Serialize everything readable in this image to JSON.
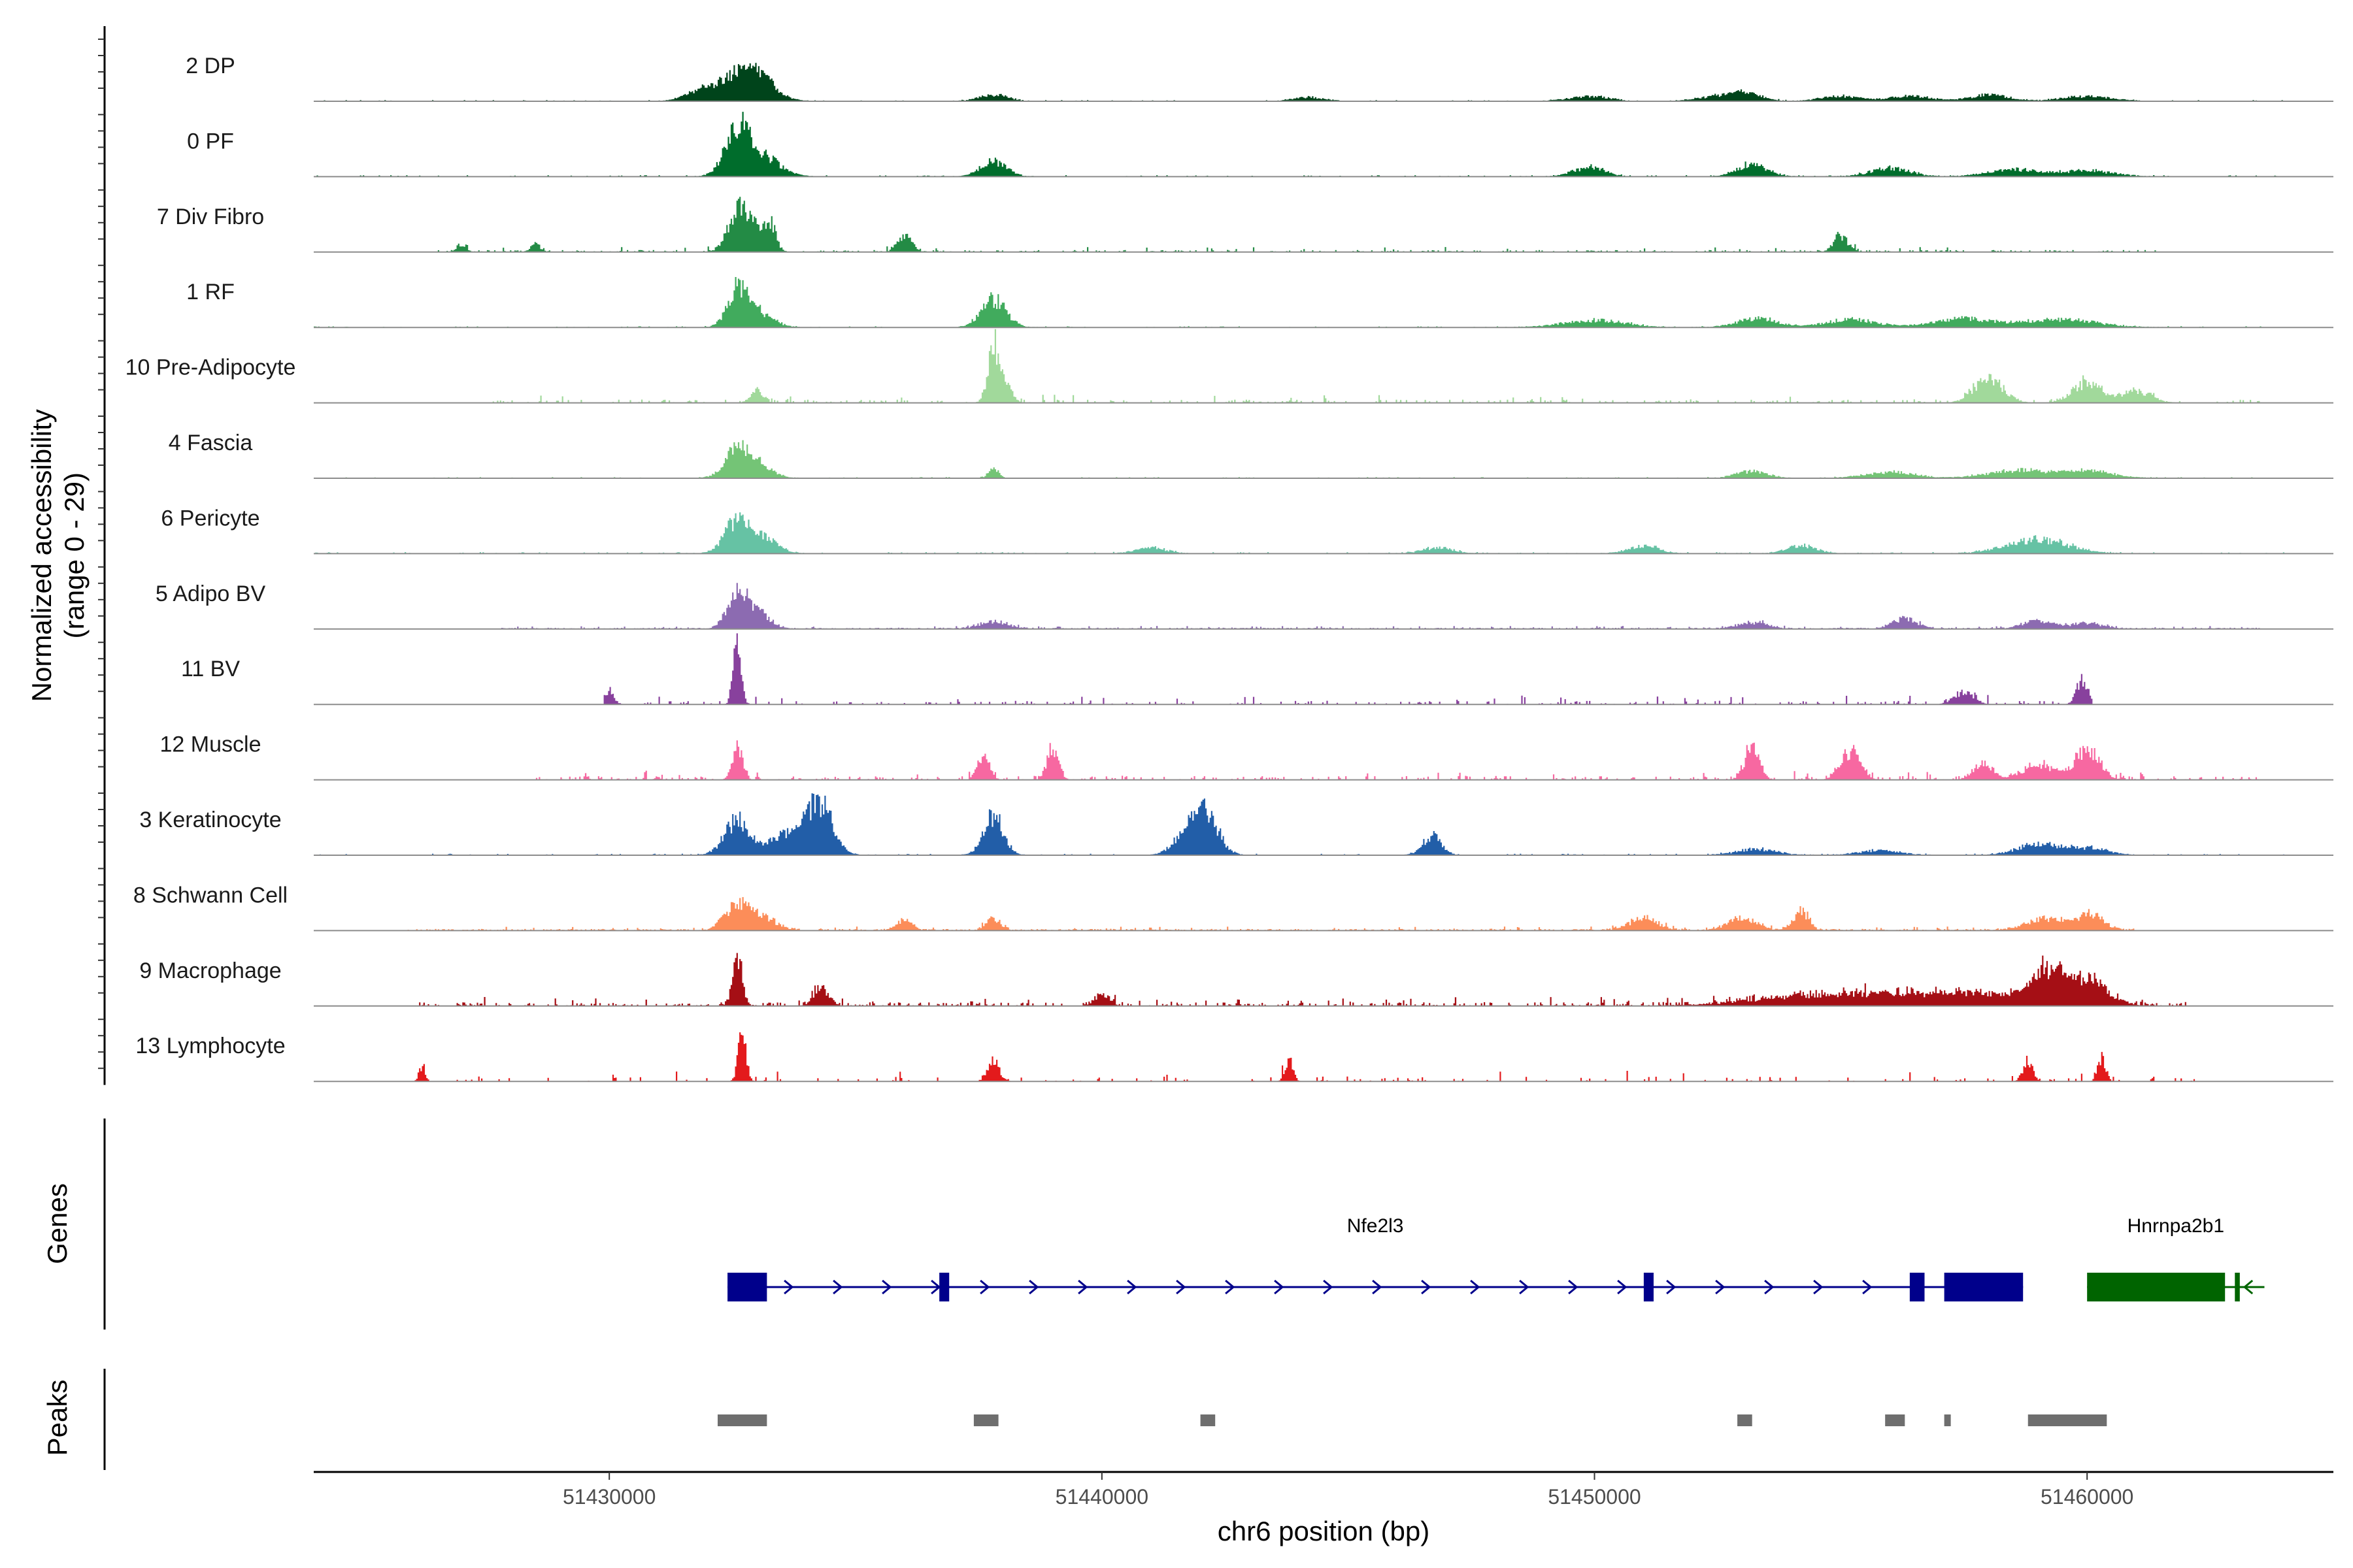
{
  "chart_data": {
    "type": "area",
    "title": "",
    "chromosome": "chr6",
    "xlabel": "chr6 position (bp)",
    "ylabel": "Normalized accessibility",
    "ylabel_range": "(range 0 - 29)",
    "ylim": [
      0,
      29
    ],
    "xlim": [
      51424000,
      51465000
    ],
    "x_ticks": [
      51430000,
      51440000,
      51450000,
      51460000
    ],
    "x_tick_labels": [
      "51430000",
      "51440000",
      "51450000",
      "51460000"
    ],
    "tracks": [
      {
        "name": "2 DP",
        "color": "#00441b",
        "range": [
          51424000,
          51464000
        ],
        "noise": 0.12,
        "density": 1.0,
        "peaks": [
          [
            51432600,
            6,
            500
          ],
          [
            51433000,
            4,
            300
          ],
          [
            51431800,
            1.2,
            300
          ],
          [
            51437800,
            1.5,
            300
          ],
          [
            51444200,
            1.0,
            300
          ],
          [
            51449900,
            1.2,
            400
          ],
          [
            51452500,
            1.2,
            400
          ],
          [
            51453100,
            2.0,
            300
          ],
          [
            51455000,
            1.2,
            400
          ],
          [
            51456400,
            1.3,
            400
          ],
          [
            51458000,
            1.5,
            400
          ],
          [
            51460000,
            1.2,
            500
          ]
        ]
      },
      {
        "name": "0 PF",
        "color": "#006d2c",
        "range": [
          51424000,
          51464000
        ],
        "noise": 0.15,
        "density": 1.0,
        "peaks": [
          [
            51432600,
            12,
            250
          ],
          [
            51433100,
            5,
            350
          ],
          [
            51437800,
            4,
            250
          ],
          [
            51449900,
            2.5,
            300
          ],
          [
            51453200,
            3,
            300
          ],
          [
            51456000,
            2.0,
            400
          ],
          [
            51458500,
            1.8,
            500
          ],
          [
            51460000,
            1.5,
            500
          ]
        ]
      },
      {
        "name": "7 Div Fibro",
        "color": "#238b45",
        "range": [
          51426500,
          51461500
        ],
        "noise": 0.5,
        "density": 0.35,
        "peaks": [
          [
            51432600,
            10,
            200
          ],
          [
            51433000,
            6,
            200
          ],
          [
            51433300,
            5,
            100
          ],
          [
            51436000,
            4,
            150
          ],
          [
            51455000,
            4,
            150
          ],
          [
            51427000,
            2,
            100
          ],
          [
            51428500,
            2,
            100
          ]
        ]
      },
      {
        "name": "1 RF",
        "color": "#41ab5d",
        "range": [
          51424000,
          51464000
        ],
        "noise": 0.12,
        "density": 1.0,
        "peaks": [
          [
            51432600,
            9,
            200
          ],
          [
            51433000,
            4,
            300
          ],
          [
            51437800,
            7,
            250
          ],
          [
            51450000,
            1.8,
            600
          ],
          [
            51453300,
            2.2,
            400
          ],
          [
            51455200,
            2.0,
            500
          ],
          [
            51457500,
            2.2,
            600
          ],
          [
            51459500,
            2.0,
            700
          ]
        ]
      },
      {
        "name": "10 Pre-Adipocyte",
        "color": "#a1d99b",
        "range": [
          51427500,
          51463500
        ],
        "noise": 0.8,
        "density": 0.25,
        "peaks": [
          [
            51437800,
            12,
            120
          ],
          [
            51438000,
            5,
            150
          ],
          [
            51433000,
            3,
            120
          ],
          [
            51458000,
            6,
            300
          ],
          [
            51460000,
            5,
            300
          ],
          [
            51461000,
            3,
            300
          ]
        ]
      },
      {
        "name": "4 Fascia",
        "color": "#74c476",
        "range": [
          51424000,
          51464000
        ],
        "noise": 0.12,
        "density": 1.0,
        "peaks": [
          [
            51432600,
            7,
            250
          ],
          [
            51433000,
            3,
            300
          ],
          [
            51437800,
            2.5,
            100
          ],
          [
            51453200,
            1.8,
            300
          ],
          [
            51456000,
            1.5,
            500
          ],
          [
            51458600,
            2.0,
            600
          ],
          [
            51460000,
            1.8,
            500
          ]
        ]
      },
      {
        "name": "6 Pericyte",
        "color": "#66c2a4",
        "range": [
          51424000,
          51464000
        ],
        "noise": 0.15,
        "density": 1.0,
        "peaks": [
          [
            51432600,
            8,
            250
          ],
          [
            51433100,
            4,
            300
          ],
          [
            51441000,
            1.5,
            300
          ],
          [
            51446800,
            1.5,
            300
          ],
          [
            51451000,
            1.8,
            300
          ],
          [
            51454200,
            2.0,
            300
          ],
          [
            51459000,
            3.5,
            600
          ]
        ]
      },
      {
        "name": "5 Adipo BV",
        "color": "#8c6bb1",
        "range": [
          51427800,
          51463500
        ],
        "noise": 0.3,
        "density": 0.9,
        "peaks": [
          [
            51432600,
            9,
            200
          ],
          [
            51433000,
            4,
            250
          ],
          [
            51437800,
            1.8,
            300
          ],
          [
            51453200,
            1.5,
            300
          ],
          [
            51456300,
            2.5,
            250
          ],
          [
            51459000,
            2.0,
            300
          ],
          [
            51460000,
            1.5,
            300
          ]
        ]
      },
      {
        "name": "11 BV",
        "color": "#88419d",
        "range": [
          51429900,
          51460100
        ],
        "noise": 0.9,
        "density": 0.22,
        "peaks": [
          [
            51432600,
            15,
            80
          ],
          [
            51430000,
            3,
            100
          ],
          [
            51459900,
            6,
            120
          ],
          [
            51457500,
            3,
            200
          ]
        ]
      },
      {
        "name": "12 Muscle",
        "color": "#f768a1",
        "range": [
          51428500,
          51463500
        ],
        "noise": 0.9,
        "density": 0.3,
        "peaks": [
          [
            51432600,
            9,
            100
          ],
          [
            51437600,
            6,
            120
          ],
          [
            51439000,
            8,
            120
          ],
          [
            51453200,
            8,
            150
          ],
          [
            51455200,
            7,
            200
          ],
          [
            51457900,
            4,
            200
          ],
          [
            51459000,
            4,
            300
          ],
          [
            51460000,
            8,
            250
          ]
        ]
      },
      {
        "name": "3 Keratinocyte",
        "color": "#225ea8",
        "range": [
          51424000,
          51464000
        ],
        "noise": 0.15,
        "density": 1.0,
        "peaks": [
          [
            51432600,
            9,
            250
          ],
          [
            51433500,
            4,
            300
          ],
          [
            51434300,
            11,
            250
          ],
          [
            51434000,
            4,
            300
          ],
          [
            51437800,
            10,
            200
          ],
          [
            51442100,
            11,
            250
          ],
          [
            51441700,
            5,
            250
          ],
          [
            51446700,
            5,
            180
          ],
          [
            51453300,
            1.5,
            400
          ],
          [
            51455800,
            1.2,
            400
          ],
          [
            51459000,
            2.8,
            400
          ],
          [
            51460000,
            1.8,
            400
          ]
        ]
      },
      {
        "name": "8 Schwann Cell",
        "color": "#fc8d59",
        "range": [
          51425800,
          51461000
        ],
        "noise": 0.4,
        "density": 0.7,
        "peaks": [
          [
            51432600,
            6,
            250
          ],
          [
            51433100,
            3,
            300
          ],
          [
            51436000,
            3,
            150
          ],
          [
            51437800,
            3,
            150
          ],
          [
            51451000,
            3,
            300
          ],
          [
            51453000,
            3,
            300
          ],
          [
            51454200,
            5,
            150
          ],
          [
            51459200,
            3,
            400
          ],
          [
            51460100,
            4,
            250
          ]
        ]
      },
      {
        "name": "9 Macrophage",
        "color": "#a50f15",
        "range": [
          51426000,
          51462000
        ],
        "noise": 0.9,
        "density": 0.4,
        "peaks": [
          [
            51432600,
            12,
            100
          ],
          [
            51434300,
            5,
            150
          ],
          [
            51440000,
            3,
            150
          ],
          [
            51455000,
            3,
            1500
          ],
          [
            51458000,
            3,
            1200
          ],
          [
            51459200,
            7,
            300
          ],
          [
            51460000,
            6,
            400
          ]
        ]
      },
      {
        "name": "13 Lymphocyte",
        "color": "#e31a1c",
        "range": [
          51426000,
          51462300
        ],
        "noise": 1.2,
        "density": 0.12,
        "peaks": [
          [
            51432700,
            12,
            80
          ],
          [
            51426200,
            4,
            60
          ],
          [
            51437800,
            5,
            120
          ],
          [
            51443800,
            5,
            80
          ],
          [
            51458800,
            5,
            100
          ],
          [
            51460300,
            6,
            80
          ]
        ]
      }
    ],
    "genes_panel_label": "Genes",
    "peaks_panel_label": "Peaks",
    "genes": [
      {
        "name": "Nfe2l3",
        "color": "#00008b",
        "strand": "+",
        "start": 51432400,
        "end": 51458700,
        "exons": [
          [
            51432400,
            51433200
          ],
          [
            51436700,
            51436900
          ],
          [
            51451000,
            51451200
          ],
          [
            51456400,
            51456700
          ],
          [
            51457100,
            51458700
          ]
        ]
      },
      {
        "name": "Hnrnpa2b1",
        "color": "#006400",
        "strand": "-",
        "start": 51460000,
        "end": 51463600,
        "exons": [
          [
            51460000,
            51462800
          ],
          [
            51463000,
            51463100
          ]
        ]
      }
    ],
    "peak_regions": [
      [
        51432200,
        51433200
      ],
      [
        51437400,
        51437900
      ],
      [
        51442000,
        51442300
      ],
      [
        51452900,
        51453200
      ],
      [
        51455900,
        51456300
      ],
      [
        51457100,
        51457200
      ],
      [
        51458800,
        51460400
      ]
    ],
    "peak_color": "#6e6e6e"
  }
}
